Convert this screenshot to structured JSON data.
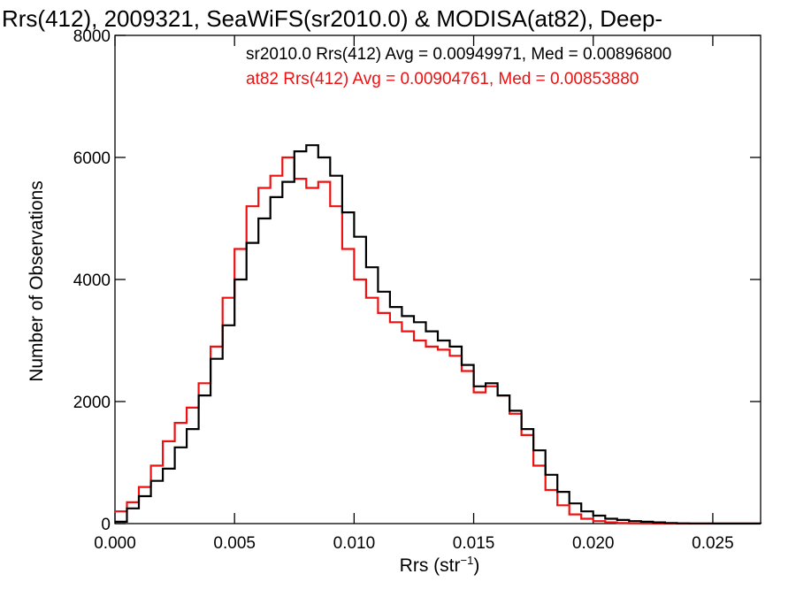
{
  "chart_data": {
    "type": "line",
    "title": "Rrs(412), 2009321, SeaWiFS(sr2010.0) & MODISA(at82), Deep-",
    "xlabel": "Rrs (str",
    "xlabel_sup": "−1",
    "xlabel_end": ")",
    "ylabel": "Number of Observations",
    "xlim": [
      0,
      0.027
    ],
    "ylim": [
      0,
      8000
    ],
    "x_ticks": [
      0.0,
      0.005,
      0.01,
      0.015,
      0.02,
      0.025
    ],
    "x_tick_labels": [
      "0.000",
      "0.005",
      "0.010",
      "0.015",
      "0.020",
      "0.025"
    ],
    "y_ticks": [
      0,
      2000,
      4000,
      6000,
      8000
    ],
    "y_tick_labels": [
      "0",
      "2000",
      "4000",
      "6000",
      "8000"
    ],
    "grid": false,
    "legend_position": "top-right",
    "colors": {
      "sr2010": "#000000",
      "at82": "#ee1111"
    },
    "series": [
      {
        "legend": "sr2010.0 Rrs(412) Avg = 0.00949971, Med = 0.00896800",
        "color": "#000000",
        "x": [
          0.0,
          0.0005,
          0.001,
          0.0015,
          0.002,
          0.0025,
          0.003,
          0.0035,
          0.004,
          0.0045,
          0.005,
          0.0055,
          0.006,
          0.0065,
          0.007,
          0.0075,
          0.008,
          0.0085,
          0.009,
          0.0095,
          0.01,
          0.0105,
          0.011,
          0.0115,
          0.012,
          0.0125,
          0.013,
          0.0135,
          0.014,
          0.0145,
          0.015,
          0.0155,
          0.016,
          0.0165,
          0.017,
          0.0175,
          0.018,
          0.0185,
          0.019,
          0.0195,
          0.02,
          0.0205,
          0.021,
          0.0215,
          0.022,
          0.0225,
          0.023,
          0.0235,
          0.024,
          0.025,
          0.026,
          0.027
        ],
        "y": [
          30,
          250,
          450,
          700,
          900,
          1250,
          1550,
          2100,
          2700,
          3250,
          4000,
          4600,
          5000,
          5350,
          5600,
          6100,
          6200,
          6000,
          5700,
          5100,
          4700,
          4200,
          3800,
          3550,
          3400,
          3300,
          3150,
          3000,
          2900,
          2600,
          2250,
          2300,
          2100,
          1850,
          1550,
          1200,
          800,
          520,
          330,
          200,
          130,
          80,
          60,
          40,
          30,
          20,
          10,
          5,
          3,
          2,
          1,
          0
        ]
      },
      {
        "legend": "at82 Rrs(412) Avg = 0.00904761, Med = 0.00853880",
        "color": "#ee1111",
        "x": [
          0.0,
          0.0005,
          0.001,
          0.0015,
          0.002,
          0.0025,
          0.003,
          0.0035,
          0.004,
          0.0045,
          0.005,
          0.0055,
          0.006,
          0.0065,
          0.007,
          0.0075,
          0.008,
          0.0085,
          0.009,
          0.0095,
          0.01,
          0.0105,
          0.011,
          0.0115,
          0.012,
          0.0125,
          0.013,
          0.0135,
          0.014,
          0.0145,
          0.015,
          0.0155,
          0.016,
          0.0165,
          0.017,
          0.0175,
          0.018,
          0.0185,
          0.019,
          0.0195,
          0.02,
          0.0205,
          0.021,
          0.0215,
          0.022,
          0.0225,
          0.023,
          0.0235,
          0.024,
          0.025,
          0.026,
          0.027
        ],
        "y": [
          200,
          350,
          600,
          950,
          1350,
          1650,
          1900,
          2300,
          2900,
          3700,
          4500,
          5200,
          5500,
          5700,
          6000,
          5650,
          5500,
          5600,
          5200,
          4500,
          4000,
          3700,
          3450,
          3300,
          3150,
          3000,
          2900,
          2850,
          2750,
          2500,
          2150,
          2250,
          2100,
          1800,
          1450,
          950,
          550,
          300,
          150,
          80,
          40,
          20,
          10,
          5,
          3,
          2,
          1,
          0,
          0,
          0,
          0,
          0
        ]
      }
    ]
  }
}
